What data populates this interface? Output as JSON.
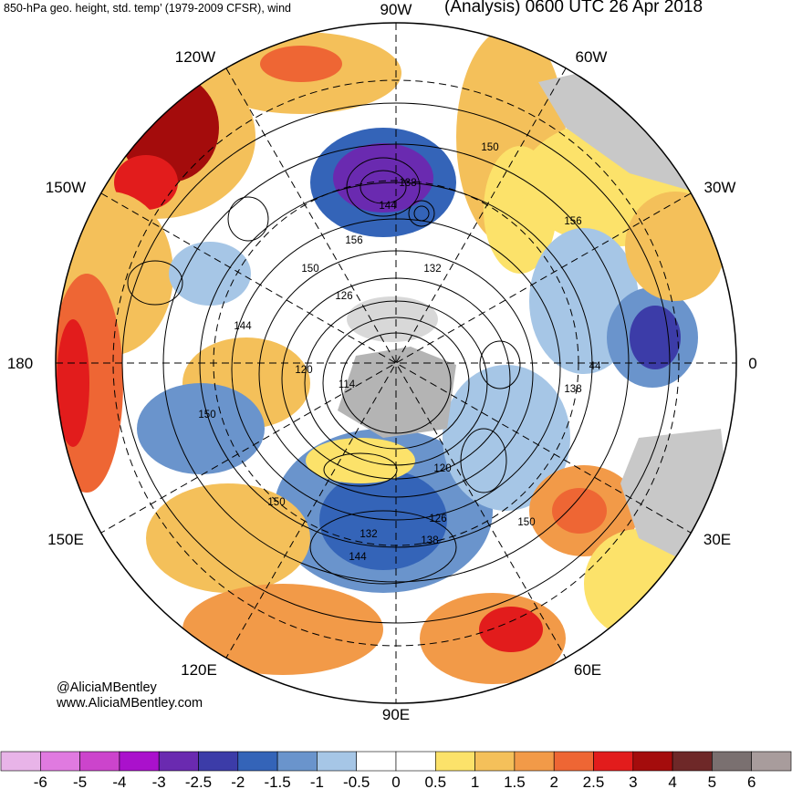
{
  "header": {
    "left_title": "850-hPa geo. height, std. temp’ (1979-2009 CFSR), wind",
    "right_title": "(Analysis) 0600 UTC 26 Apr 2018"
  },
  "longitude_labels": {
    "lon_90w": "90W",
    "lon_120w": "120W",
    "lon_60w": "60W",
    "lon_150w": "150W",
    "lon_30w": "30W",
    "lon_180": "180",
    "lon_0": "0",
    "lon_150e": "150E",
    "lon_30e": "30E",
    "lon_120e": "120E",
    "lon_60e": "60E",
    "lon_90e": "90E"
  },
  "contour_labels": [
    "138",
    "144",
    "156",
    "150",
    "132",
    "126",
    "144",
    "120",
    "114",
    "150",
    "44",
    "138",
    "150",
    "150",
    "120",
    "126",
    "138",
    "132",
    "144",
    "150",
    "156"
  ],
  "credits": {
    "twitter": "@AliciaMBentley",
    "website": "www.AliciaMBentley.com"
  },
  "colorbar": {
    "ticks": [
      "-6",
      "-5",
      "-4",
      "-3",
      "-2.5",
      "-2",
      "-1.5",
      "-1",
      "-0.5",
      "0",
      "0.5",
      "1",
      "1.5",
      "2",
      "2.5",
      "3",
      "4",
      "5",
      "6"
    ],
    "colors": [
      "#e8b4e8",
      "#e07ae0",
      "#cc44cc",
      "#aa11cc",
      "#6a2ab0",
      "#3c3ca8",
      "#3464b8",
      "#6a94cc",
      "#a6c6e6",
      "#ffffff",
      "#ffffff",
      "#fce26a",
      "#f4c05a",
      "#f29a48",
      "#ee6634",
      "#e21c1c",
      "#a40c0c",
      "#6e2828",
      "#7a7070",
      "#a89c9c"
    ]
  }
}
